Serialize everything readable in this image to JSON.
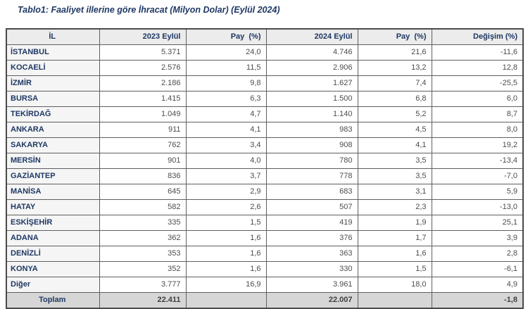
{
  "title": "Tablo1: Faaliyet illerine göre İhracat (Milyon Dolar) (Eylül 2024)",
  "table": {
    "columns": [
      "İL",
      "2023 Eylül",
      "Pay  (%)",
      "2024 Eylül",
      "Pay  (%)",
      "Değişim (%)"
    ],
    "rows": [
      {
        "il": "İSTANBUL",
        "v2023": "5.371",
        "pay2023": "24,0",
        "v2024": "4.746",
        "pay2024": "21,6",
        "degisim": "-11,6"
      },
      {
        "il": "KOCAELİ",
        "v2023": "2.576",
        "pay2023": "11,5",
        "v2024": "2.906",
        "pay2024": "13,2",
        "degisim": "12,8"
      },
      {
        "il": "İZMİR",
        "v2023": "2.186",
        "pay2023": "9,8",
        "v2024": "1.627",
        "pay2024": "7,4",
        "degisim": "-25,5"
      },
      {
        "il": "BURSA",
        "v2023": "1.415",
        "pay2023": "6,3",
        "v2024": "1.500",
        "pay2024": "6,8",
        "degisim": "6,0"
      },
      {
        "il": "TEKİRDAĞ",
        "v2023": "1.049",
        "pay2023": "4,7",
        "v2024": "1.140",
        "pay2024": "5,2",
        "degisim": "8,7"
      },
      {
        "il": "ANKARA",
        "v2023": "911",
        "pay2023": "4,1",
        "v2024": "983",
        "pay2024": "4,5",
        "degisim": "8,0"
      },
      {
        "il": "SAKARYA",
        "v2023": "762",
        "pay2023": "3,4",
        "v2024": "908",
        "pay2024": "4,1",
        "degisim": "19,2"
      },
      {
        "il": "MERSİN",
        "v2023": "901",
        "pay2023": "4,0",
        "v2024": "780",
        "pay2024": "3,5",
        "degisim": "-13,4"
      },
      {
        "il": "GAZİANTEP",
        "v2023": "836",
        "pay2023": "3,7",
        "v2024": "778",
        "pay2024": "3,5",
        "degisim": "-7,0"
      },
      {
        "il": "MANİSA",
        "v2023": "645",
        "pay2023": "2,9",
        "v2024": "683",
        "pay2024": "3,1",
        "degisim": "5,9"
      },
      {
        "il": "HATAY",
        "v2023": "582",
        "pay2023": "2,6",
        "v2024": "507",
        "pay2024": "2,3",
        "degisim": "-13,0"
      },
      {
        "il": "ESKİŞEHİR",
        "v2023": "335",
        "pay2023": "1,5",
        "v2024": "419",
        "pay2024": "1,9",
        "degisim": "25,1"
      },
      {
        "il": "ADANA",
        "v2023": "362",
        "pay2023": "1,6",
        "v2024": "376",
        "pay2024": "1,7",
        "degisim": "3,9"
      },
      {
        "il": "DENİZLİ",
        "v2023": "353",
        "pay2023": "1,6",
        "v2024": "363",
        "pay2024": "1,6",
        "degisim": "2,8"
      },
      {
        "il": "KONYA",
        "v2023": "352",
        "pay2023": "1,6",
        "v2024": "330",
        "pay2024": "1,5",
        "degisim": "-6,1"
      },
      {
        "il": "Diğer",
        "v2023": "3.777",
        "pay2023": "16,9",
        "v2024": "3.961",
        "pay2024": "18,0",
        "degisim": "4,9"
      }
    ],
    "total": {
      "il": "Toplam",
      "v2023": "22.411",
      "pay2023": "",
      "v2024": "22.007",
      "pay2024": "",
      "degisim": "-1,8"
    }
  },
  "colors": {
    "title_text": "#1f3864",
    "header_bg": "#ececec",
    "province_cell_bg": "#f5f5f5",
    "total_row_bg": "#d6d6d6",
    "value_text": "#4d4d4d",
    "border": "#5f5f5f"
  }
}
